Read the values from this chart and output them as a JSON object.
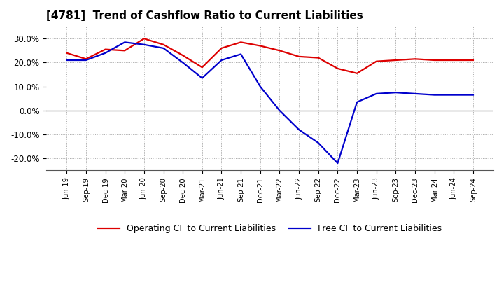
{
  "title": "[4781]  Trend of Cashflow Ratio to Current Liabilities",
  "x_labels": [
    "Jun-19",
    "Sep-19",
    "Dec-19",
    "Mar-20",
    "Jun-20",
    "Sep-20",
    "Dec-20",
    "Mar-21",
    "Jun-21",
    "Sep-21",
    "Dec-21",
    "Mar-22",
    "Jun-22",
    "Sep-22",
    "Dec-22",
    "Mar-23",
    "Jun-23",
    "Sep-23",
    "Dec-23",
    "Mar-24",
    "Jun-24",
    "Sep-24"
  ],
  "operating_cf": [
    24.0,
    21.5,
    25.5,
    25.0,
    30.0,
    27.5,
    23.0,
    18.0,
    26.0,
    28.5,
    27.0,
    25.0,
    22.5,
    22.0,
    17.5,
    15.5,
    20.5,
    21.0,
    21.5,
    21.0,
    21.0,
    21.0
  ],
  "free_cf": [
    21.0,
    21.0,
    24.0,
    28.5,
    27.5,
    26.0,
    20.0,
    13.5,
    21.0,
    23.5,
    10.0,
    0.0,
    -8.0,
    -13.5,
    -22.0,
    3.5,
    7.0,
    7.5,
    7.0,
    6.5,
    6.5,
    6.5
  ],
  "operating_color": "#dd0000",
  "free_color": "#0000cc",
  "background_color": "#ffffff",
  "grid_color": "#aaaaaa",
  "ylim": [
    -25,
    35
  ],
  "yticks": [
    -20,
    -10,
    0,
    10,
    20,
    30
  ],
  "legend_labels": [
    "Operating CF to Current Liabilities",
    "Free CF to Current Liabilities"
  ]
}
